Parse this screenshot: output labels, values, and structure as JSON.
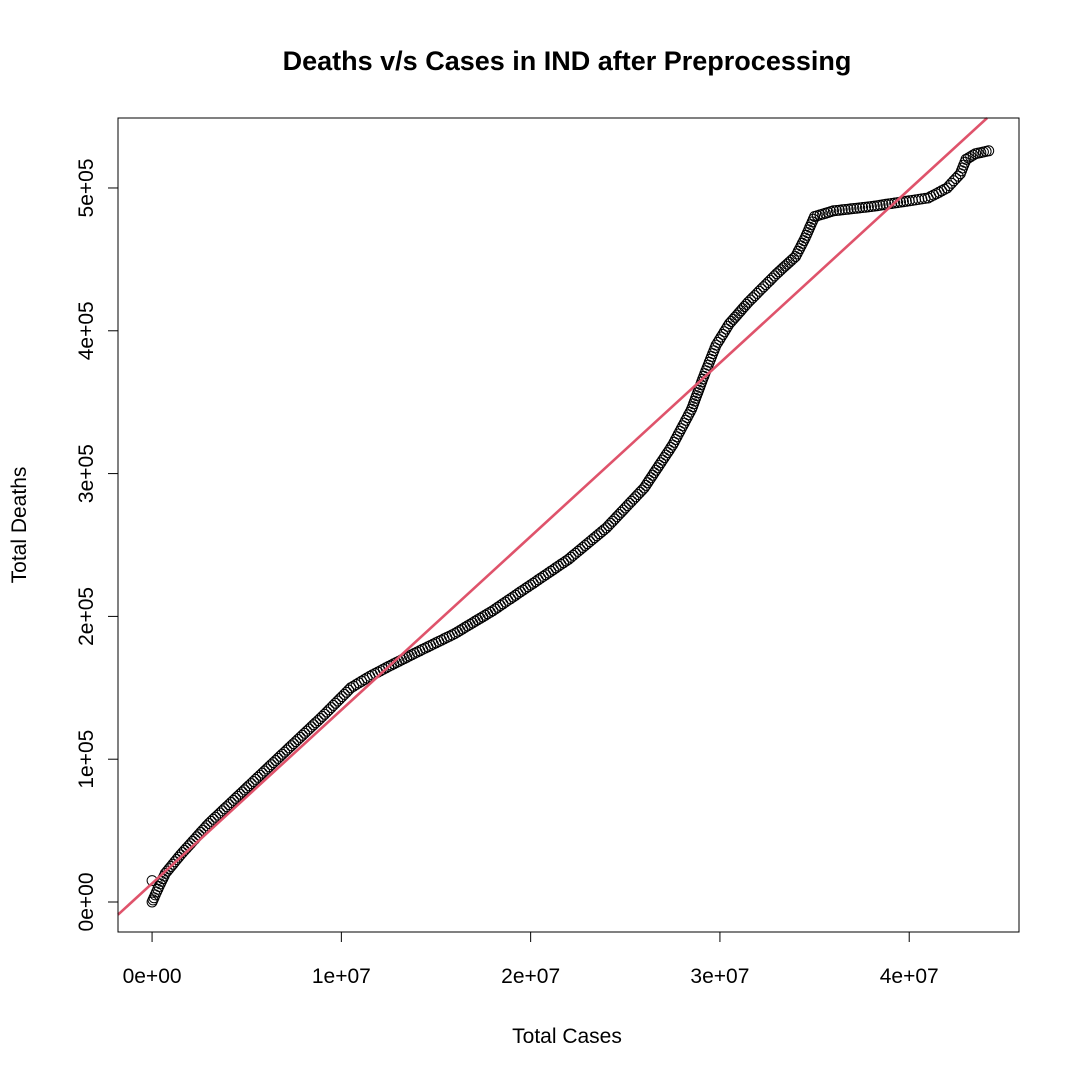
{
  "chart_data": {
    "type": "scatter",
    "title": "Deaths v/s Cases in IND after Preprocessing",
    "xlabel": "Total Cases",
    "ylabel": "Total Deaths",
    "xlim": [
      -1800000,
      45800000
    ],
    "ylim": [
      -21000,
      549000
    ],
    "x_ticks": [
      0,
      10000000,
      20000000,
      30000000,
      40000000
    ],
    "x_tick_labels": [
      "0e+00",
      "1e+07",
      "2e+07",
      "3e+07",
      "4e+07"
    ],
    "y_ticks": [
      0,
      100000,
      200000,
      300000,
      400000,
      500000
    ],
    "y_tick_labels": [
      "0e+00",
      "1e+05",
      "2e+05",
      "3e+05",
      "4e+05",
      "5e+05"
    ],
    "grid": false,
    "legend": "none",
    "point_style": "open-circle",
    "point_color": "#000000",
    "line_color": "#DF536B",
    "fit_line": {
      "intercept": 13000,
      "slope": 0.01215
    },
    "series": [
      {
        "anchor_points": [
          [
            0,
            0
          ],
          [
            100000,
            3000
          ],
          [
            300000,
            9000
          ],
          [
            700000,
            20000
          ],
          [
            1500000,
            33000
          ],
          [
            3000000,
            55000
          ],
          [
            5000000,
            80000
          ],
          [
            7000000,
            105000
          ],
          [
            9000000,
            130000
          ],
          [
            10500000,
            150000
          ],
          [
            11500000,
            158000
          ],
          [
            12500000,
            165000
          ],
          [
            14000000,
            175000
          ],
          [
            16000000,
            188000
          ],
          [
            18000000,
            204000
          ],
          [
            20000000,
            222000
          ],
          [
            22000000,
            240000
          ],
          [
            24000000,
            262000
          ],
          [
            26000000,
            290000
          ],
          [
            27500000,
            320000
          ],
          [
            28500000,
            345000
          ],
          [
            29200000,
            370000
          ],
          [
            29800000,
            390000
          ],
          [
            30500000,
            405000
          ],
          [
            31500000,
            420000
          ],
          [
            33000000,
            440000
          ],
          [
            34000000,
            452000
          ],
          [
            34500000,
            465000
          ],
          [
            35000000,
            480000
          ],
          [
            36000000,
            484000
          ],
          [
            38000000,
            487000
          ],
          [
            40000000,
            491000
          ],
          [
            41000000,
            493000
          ],
          [
            42000000,
            500000
          ],
          [
            42700000,
            510000
          ],
          [
            43000000,
            520000
          ],
          [
            43500000,
            524000
          ],
          [
            44200000,
            526000
          ]
        ],
        "extra_points": [
          [
            0,
            15000
          ]
        ]
      }
    ]
  }
}
